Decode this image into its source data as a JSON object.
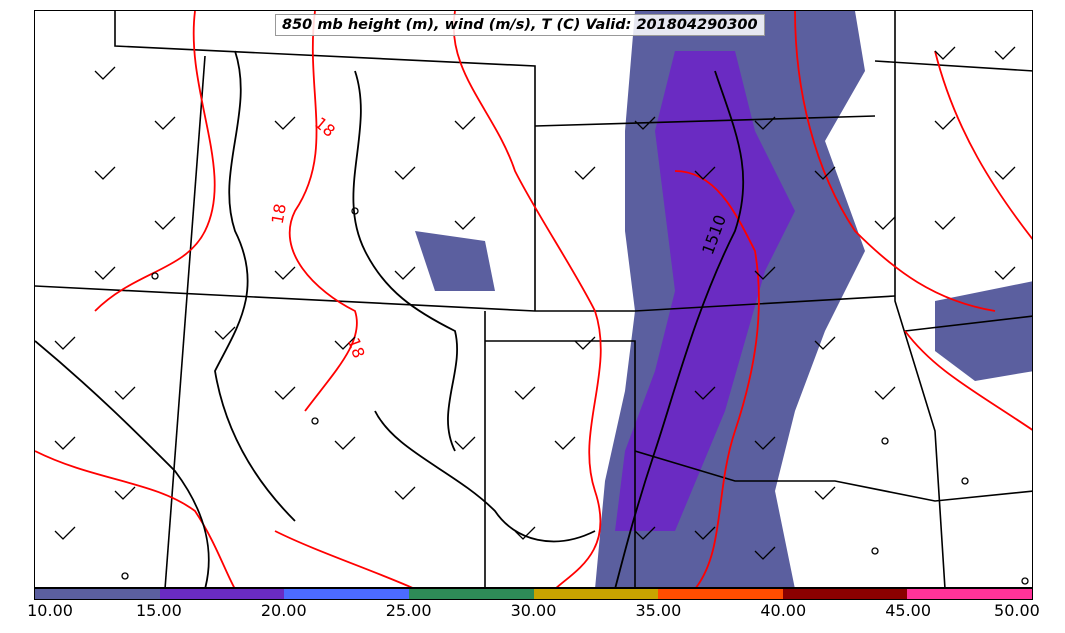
{
  "title": "850 mb height (m), wind (m/s), T (C) Valid: 201804290300",
  "contour_labels": {
    "temp_label_1": "18",
    "temp_label_2": "18",
    "temp_label_3": "18",
    "height_label": "1510"
  },
  "colors": {
    "height_contour": "#000000",
    "temp_contour": "#ff0000",
    "state_borders": "#000000",
    "barbs": "#000000",
    "precip_light": "#5b5f9f",
    "precip_heavy": "#6a2bc2"
  },
  "colorbar": {
    "colors": [
      "#5b5f9f",
      "#6a2bc2",
      "#4c6bff",
      "#2e8b57",
      "#c8a400",
      "#ff4d00",
      "#8b0000",
      "#ff3399"
    ],
    "ticks": [
      "10.00",
      "15.00",
      "20.00",
      "25.00",
      "30.00",
      "35.00",
      "40.00",
      "45.00",
      "50.00"
    ]
  }
}
